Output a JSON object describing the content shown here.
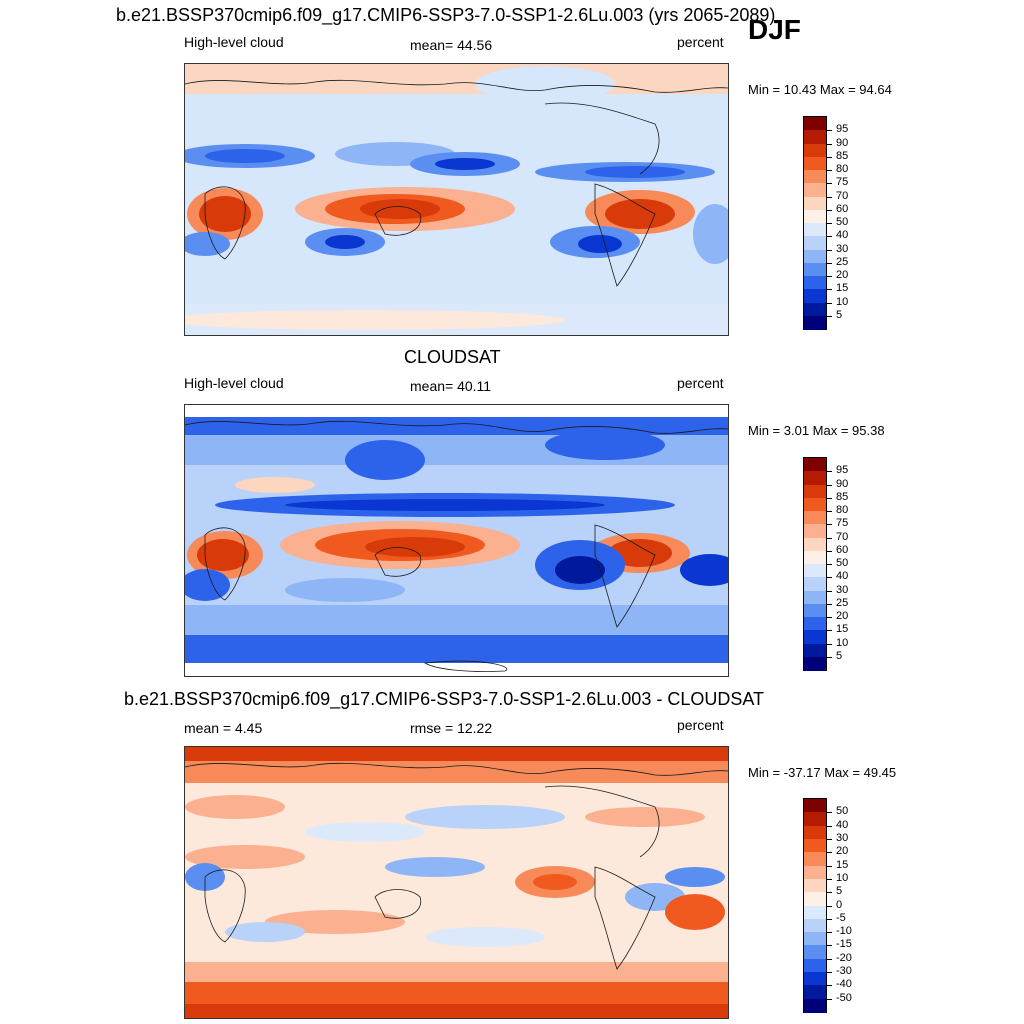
{
  "season": "DJF",
  "panels": [
    {
      "id": "model",
      "title": "b.e21.BSSP370cmip6.f09_g17.CMIP6-SSP3-7.0-SSP1-2.6Lu.003 (yrs 2065-2089)",
      "left_label": "High-level cloud",
      "center_label": "mean=  44.56",
      "units": "percent",
      "minmax": "Min =  10.43 Max =  94.64",
      "colorbar_labels": [
        "95",
        "90",
        "85",
        "80",
        "75",
        "70",
        "60",
        "50",
        "40",
        "30",
        "25",
        "20",
        "15",
        "10",
        "5"
      ]
    },
    {
      "id": "obs",
      "title": "CLOUDSAT",
      "left_label": "High-level cloud",
      "center_label": "mean=  40.11",
      "units": "percent",
      "minmax": "Min =   3.01 Max =  95.38",
      "colorbar_labels": [
        "95",
        "90",
        "85",
        "80",
        "75",
        "70",
        "60",
        "50",
        "40",
        "30",
        "25",
        "20",
        "15",
        "10",
        "5"
      ]
    },
    {
      "id": "diff",
      "title": "b.e21.BSSP370cmip6.f09_g17.CMIP6-SSP3-7.0-SSP1-2.6Lu.003 - CLOUDSAT",
      "left_label": "mean =   4.45",
      "center_label": "rmse =  12.22",
      "units": "percent",
      "minmax": "Min = -37.17 Max =  49.45",
      "colorbar_labels": [
        "50",
        "40",
        "30",
        "20",
        "15",
        "10",
        "5",
        "0",
        "-5",
        "-10",
        "-15",
        "-20",
        "-30",
        "-40",
        "-50"
      ]
    }
  ],
  "colors": {
    "colorbar_scale": [
      "#7f0000",
      "#b51b00",
      "#d93a0a",
      "#f05a1e",
      "#f88a5a",
      "#fbb090",
      "#fdd6bf",
      "#fdf0e6",
      "#dce9fb",
      "#b8d2fa",
      "#8eb5f5",
      "#5a8ef0",
      "#2d62ea",
      "#0a36d2",
      "#001a9e",
      "#00007a"
    ],
    "coastline": "#1a1a1a"
  }
}
